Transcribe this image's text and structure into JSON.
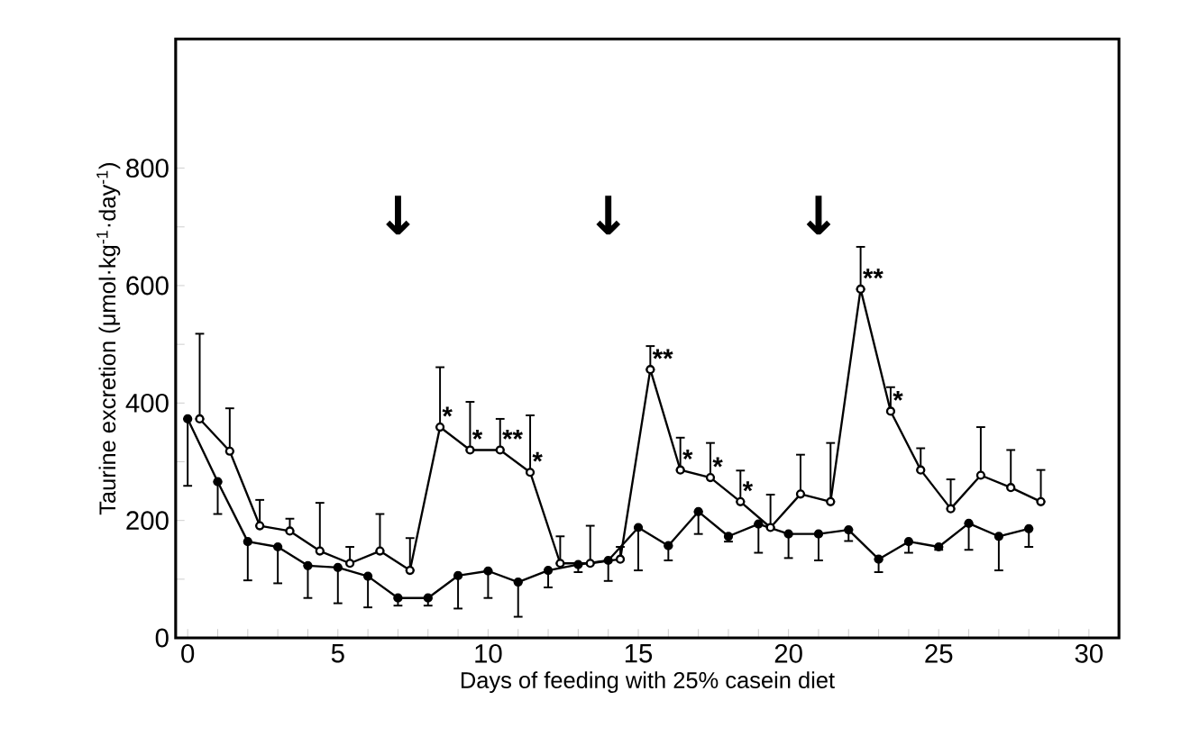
{
  "chart_data": {
    "type": "line",
    "xlabel": "Days of feeding with 25% casein diet",
    "ylabel": "Taurine excretion (μmol·kg$^{-1}$·day$^{-1}$)",
    "xlim": [
      -0.4,
      31
    ],
    "ylim": [
      0,
      1020
    ],
    "xticks": [
      0,
      {
        "value": 1,
        "label": null
      },
      {
        "value": 2,
        "label": null
      },
      {
        "value": 3,
        "label": null
      },
      {
        "value": 4,
        "label": null
      },
      5,
      {
        "value": 6,
        "label": null
      },
      {
        "value": 7,
        "label": null
      },
      {
        "value": 8,
        "label": null
      },
      {
        "value": 9,
        "label": null
      },
      10,
      {
        "value": 11,
        "label": null
      },
      {
        "value": 12,
        "label": null
      },
      {
        "value": 13,
        "label": null
      },
      {
        "value": 14,
        "label": null
      },
      15,
      {
        "value": 16,
        "label": null
      },
      {
        "value": 17,
        "label": null
      },
      {
        "value": 18,
        "label": null
      },
      {
        "value": 19,
        "label": null
      },
      20,
      {
        "value": 21,
        "label": null
      },
      {
        "value": 22,
        "label": null
      },
      {
        "value": 23,
        "label": null
      },
      {
        "value": 24,
        "label": null
      },
      25,
      {
        "value": 26,
        "label": null
      },
      {
        "value": 27,
        "label": null
      },
      {
        "value": 28,
        "label": null
      },
      {
        "value": 29,
        "label": null
      },
      30
    ],
    "yticks": [
      0,
      {
        "value": 100,
        "label": null
      },
      200,
      {
        "value": 300,
        "label": null
      },
      400,
      {
        "value": 500,
        "label": null
      },
      600,
      {
        "value": 700,
        "label": null
      },
      800
    ],
    "grid": false,
    "marker": "circle",
    "line_style": "solid",
    "series": [
      {
        "color": "#000000",
        "x": [
          0,
          1,
          2,
          3,
          4,
          5,
          6,
          7,
          8,
          9,
          10,
          11,
          12,
          13,
          14,
          15,
          16,
          17,
          18,
          19,
          20,
          21,
          22,
          23,
          24,
          25,
          26,
          27,
          28
        ],
        "values": [
          373,
          266,
          164,
          155,
          123,
          120,
          105,
          68,
          68,
          106,
          114,
          95,
          115,
          125,
          132,
          188,
          157,
          215,
          173,
          194,
          177,
          177,
          184,
          134,
          164,
          155,
          195,
          173,
          186
        ],
        "errors": [
          [
            259,
            373
          ],
          [
            211,
            266
          ],
          [
            98,
            164
          ],
          [
            93,
            155
          ],
          [
            68,
            123
          ],
          [
            59,
            120
          ],
          [
            52,
            105
          ],
          [
            55,
            68
          ],
          [
            55,
            68
          ],
          [
            50,
            106
          ],
          [
            68,
            114
          ],
          [
            36,
            95
          ],
          [
            86,
            115
          ],
          [
            112,
            125
          ],
          [
            97,
            132
          ],
          [
            115,
            188
          ],
          [
            132,
            157
          ],
          [
            177,
            215
          ],
          [
            164,
            173
          ],
          [
            145,
            194
          ],
          [
            136,
            177
          ],
          [
            132,
            177
          ],
          [
            165,
            184
          ],
          [
            112,
            134
          ],
          [
            145,
            164
          ],
          [
            150,
            155
          ],
          [
            150,
            195
          ],
          [
            115,
            173
          ],
          [
            155,
            186
          ]
        ]
      },
      {
        "color": "#000000",
        "x": [
          0.4,
          1.4,
          2.4,
          3.4,
          4.4,
          5.4,
          6.4,
          7.4,
          8.4,
          9.4,
          10.4,
          11.4,
          12.4,
          13.4,
          14.4,
          15.4,
          16.4,
          17.4,
          18.4,
          19.4,
          20.4,
          21.4,
          22.4,
          23.4,
          24.4,
          25.4,
          26.4,
          27.4,
          28.4
        ],
        "values": [
          373,
          318,
          191,
          182,
          148,
          127,
          148,
          115,
          359,
          320,
          320,
          282,
          127,
          127,
          134,
          457,
          286,
          273,
          232,
          188,
          245,
          232,
          594,
          386,
          286,
          220,
          277,
          256,
          232
        ],
        "errors": [
          [
            373,
            518
          ],
          [
            318,
            391
          ],
          [
            191,
            235
          ],
          [
            182,
            203
          ],
          [
            148,
            230
          ],
          [
            127,
            155
          ],
          [
            148,
            211
          ],
          [
            115,
            170
          ],
          [
            359,
            461
          ],
          [
            320,
            402
          ],
          [
            320,
            373
          ],
          [
            282,
            379
          ],
          [
            127,
            173
          ],
          [
            127,
            191
          ],
          [
            134,
            155
          ],
          [
            457,
            497
          ],
          [
            286,
            341
          ],
          [
            273,
            332
          ],
          [
            232,
            285
          ],
          [
            188,
            244
          ],
          [
            245,
            312
          ],
          [
            232,
            332
          ],
          [
            594,
            666
          ],
          [
            386,
            427
          ],
          [
            286,
            323
          ],
          [
            220,
            270
          ],
          [
            277,
            359
          ],
          [
            256,
            320
          ],
          [
            232,
            286
          ]
        ]
      }
    ],
    "annotations": [
      "↓",
      "↓",
      "↓",
      {
        "text": "*",
        "x": 8.4,
        "y": 359
      },
      {
        "text": "*",
        "x": 9.4,
        "y": 320
      },
      {
        "text": "**",
        "x": 10.4,
        "y": 320
      },
      {
        "text": "*",
        "x": 11.4,
        "y": 282
      },
      {
        "text": "**",
        "x": 15.4,
        "y": 457
      },
      {
        "text": "*",
        "x": 16.4,
        "y": 286
      },
      {
        "text": "*",
        "x": 17.4,
        "y": 273
      },
      {
        "text": "*",
        "x": 18.4,
        "y": 232
      },
      {
        "text": "**",
        "x": 22.4,
        "y": 594
      },
      {
        "text": "*",
        "x": 23.4,
        "y": 386
      }
    ]
  }
}
